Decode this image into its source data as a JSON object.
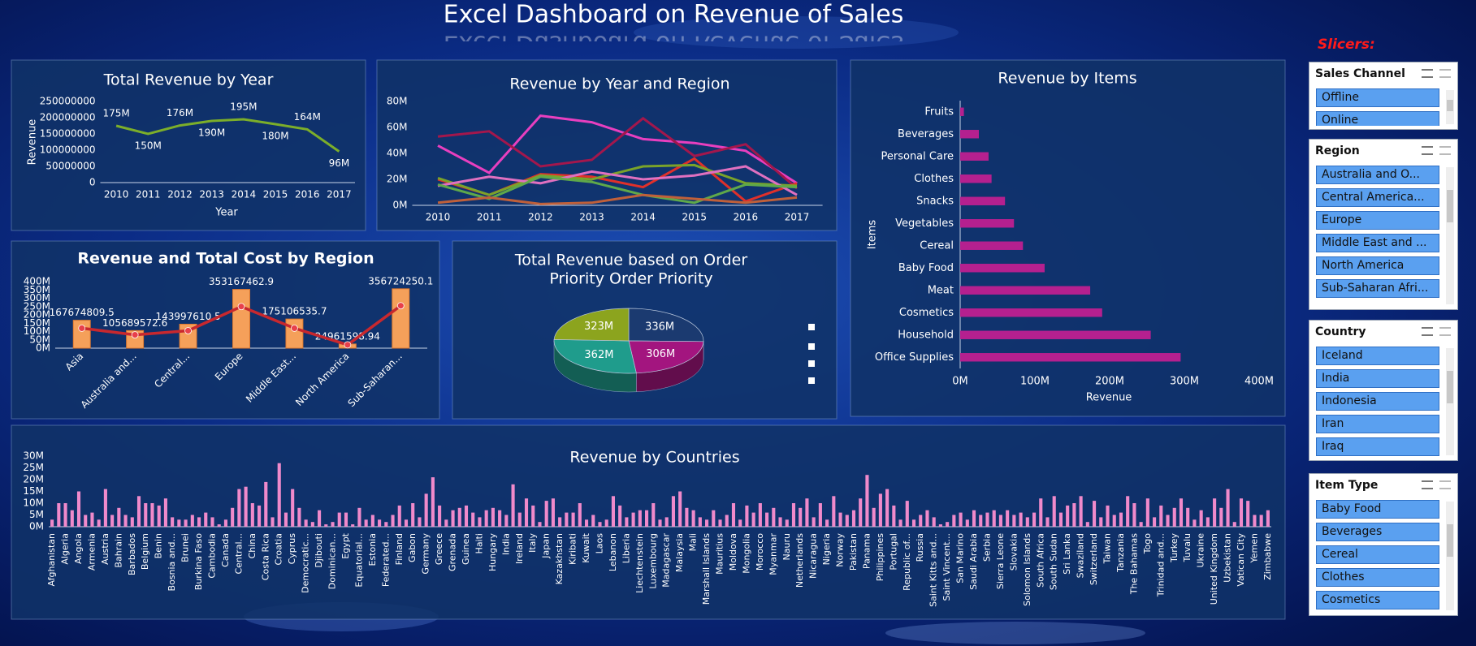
{
  "title": "Excel Dashboard on Revenue of Sales",
  "chart_data": [
    {
      "type": "line",
      "title": "Total Revenue by Year",
      "categories": [
        "2010",
        "2011",
        "2012",
        "2013",
        "2014",
        "2015",
        "2016",
        "2017"
      ],
      "values": [
        175000000,
        150000000,
        176000000,
        190000000,
        195000000,
        180000000,
        164000000,
        96000000
      ],
      "value_labels": [
        "175M",
        "150M",
        "176M",
        "190M",
        "195M",
        "180M",
        "164M",
        "96M"
      ],
      "color": "#7cae2a",
      "ylim": [
        0,
        250000000
      ],
      "yticks": [
        0,
        50000000,
        100000000,
        150000000,
        200000000,
        250000000
      ],
      "xlabel": "Year",
      "ylabel": "Revenue"
    },
    {
      "type": "line",
      "title": "Revenue by Year and Region",
      "categories": [
        "2010",
        "2011",
        "2012",
        "2013",
        "2014",
        "2015",
        "2016",
        "2017"
      ],
      "series": [
        {
          "color": "#e83fbf",
          "values": [
            46,
            25,
            69,
            64,
            51,
            48,
            42,
            17
          ]
        },
        {
          "color": "#a3174c",
          "values": [
            53,
            57,
            30,
            35,
            67,
            38,
            47,
            13
          ]
        },
        {
          "color": "#e0302a",
          "values": [
            20,
            8,
            24,
            22,
            14,
            36,
            3,
            17
          ]
        },
        {
          "color": "#7aa32a",
          "values": [
            21,
            8,
            23,
            20,
            30,
            31,
            17,
            15
          ]
        },
        {
          "color": "#e070c0",
          "values": [
            15,
            22,
            17,
            26,
            20,
            23,
            30,
            8
          ]
        },
        {
          "color": "#5fa84a",
          "values": [
            16,
            5,
            22,
            18,
            8,
            2,
            16,
            14
          ]
        },
        {
          "color": "#c0603a",
          "values": [
            2,
            6,
            1,
            2,
            8,
            5,
            2,
            6
          ]
        }
      ],
      "ylim": [
        0,
        80
      ],
      "yticks": [
        {
          "value": 0,
          "label": "0M"
        },
        {
          "value": 20,
          "label": "20M"
        },
        {
          "value": 40,
          "label": "40M"
        },
        {
          "value": 60,
          "label": "60M"
        },
        {
          "value": 80,
          "label": "80M"
        }
      ]
    },
    {
      "type": "bar",
      "orientation": "horizontal",
      "title": "Revenue by Items",
      "categories": [
        "Fruits",
        "Beverages",
        "Personal Care",
        "Clothes",
        "Snacks",
        "Vegetables",
        "Cereal",
        "Baby Food",
        "Meat",
        "Cosmetics",
        "Household",
        "Office Supplies"
      ],
      "values": [
        5,
        25,
        38,
        42,
        60,
        72,
        84,
        113,
        174,
        190,
        255,
        295
      ],
      "color": "#b5208f",
      "xlim": [
        0,
        400
      ],
      "xticks": [
        {
          "value": 0,
          "label": "0M"
        },
        {
          "value": 100,
          "label": "100M"
        },
        {
          "value": 200,
          "label": "200M"
        },
        {
          "value": 300,
          "label": "300M"
        },
        {
          "value": 400,
          "label": "400M"
        }
      ],
      "xlabel": "Revenue",
      "ylabel": "Items"
    },
    {
      "type": "combo",
      "title": "Revenue and Total Cost by Region",
      "categories": [
        "Asia",
        "Australia and...",
        "Central...",
        "Europe",
        "Middle East...",
        "North America",
        "Sub-Saharan..."
      ],
      "series": [
        {
          "type": "bar",
          "color": "#f5a05a",
          "values": [
            167674809.5,
            105689572.6,
            143997610.5,
            353167462.9,
            175106535.7,
            24961598.94,
            356724250.1
          ]
        },
        {
          "type": "line",
          "color": "#c8282e",
          "values": [
            120000000,
            80000000,
            105000000,
            250000000,
            120000000,
            20000000,
            255000000
          ]
        }
      ],
      "ylim": [
        0,
        400000000
      ],
      "yticks": [
        {
          "value": 0,
          "label": "0M"
        },
        {
          "value": 50000000,
          "label": "50M"
        },
        {
          "value": 100000000,
          "label": "100M"
        },
        {
          "value": 150000000,
          "label": "150M"
        },
        {
          "value": 200000000,
          "label": "200M"
        },
        {
          "value": 250000000,
          "label": "250M"
        },
        {
          "value": 300000000,
          "label": "300M"
        },
        {
          "value": 350000000,
          "label": "350M"
        },
        {
          "value": 400000000,
          "label": "400M"
        }
      ]
    },
    {
      "type": "pie",
      "title": [
        "Total Revenue based on Order",
        "Priority Order Priority"
      ],
      "values": [
        336,
        306,
        362,
        323
      ],
      "value_labels": [
        "336M",
        "306M",
        "362M",
        "323M"
      ],
      "colors": [
        "#1b3a70",
        "#a3157f",
        "#1f9c8c",
        "#8ca41e"
      ]
    },
    {
      "type": "bar",
      "title": "Revenue by Countries",
      "categories": [
        "Afghanistan",
        null,
        "Algeria",
        null,
        "Angola",
        null,
        "Armenia",
        null,
        "Austria",
        null,
        "Bahrain",
        null,
        "Barbados",
        null,
        "Belgium",
        null,
        "Benin",
        null,
        "Bosnia and...",
        null,
        "Brunei",
        null,
        "Burkina Faso",
        null,
        "Cambodia",
        null,
        "Canada",
        null,
        "Central...",
        null,
        "China",
        null,
        "Costa Rica",
        null,
        "Croatia",
        null,
        "Cyprus",
        null,
        "Democratic...",
        null,
        "Djibouti",
        null,
        "Dominican...",
        null,
        "Egypt",
        null,
        "Equatorial...",
        null,
        "Estonia",
        null,
        "Federated...",
        null,
        "Finland",
        null,
        "Gabon",
        null,
        "Germany",
        null,
        "Greece",
        null,
        "Grenada",
        null,
        "Guinea",
        null,
        "Haiti",
        null,
        "Hungary",
        null,
        "India",
        null,
        "Ireland",
        null,
        "Italy",
        null,
        "Japan",
        null,
        "Kazakhstan",
        null,
        "Kiribati",
        null,
        "Kuwait",
        null,
        "Laos",
        null,
        "Lebanon",
        null,
        "Liberia",
        null,
        "Liechtenstein",
        null,
        "Luxembourg",
        null,
        "Madagascar",
        null,
        "Malaysia",
        null,
        "Mali",
        null,
        "Marshall Islands",
        null,
        "Mauritius",
        null,
        "Moldova",
        null,
        "Mongolia",
        null,
        "Morocco",
        null,
        "Myanmar",
        null,
        "Nauru",
        null,
        "Netherlands",
        null,
        "Nicaragua",
        null,
        "Nigeria",
        null,
        "Norway",
        null,
        "Pakistan",
        null,
        "Panama",
        null,
        "Philippines",
        null,
        "Portugal",
        null,
        "Republic of...",
        null,
        "Russia",
        null,
        "Saint Kitts and...",
        null,
        "Saint Vincent...",
        null,
        "San Marino",
        null,
        "Saudi Arabia",
        null,
        "Serbia",
        null,
        "Sierra Leone",
        null,
        "Slovakia",
        null,
        "Solomon Islands",
        null,
        "South Africa",
        null,
        "South Sudan",
        null,
        "Sri Lanka",
        null,
        "Swaziland",
        null,
        "Switzerland",
        null,
        "Taiwan",
        null,
        "Tanzania",
        null,
        "The Bahamas",
        null,
        "Togo",
        null,
        "Trinidad and...",
        null,
        "Turkey",
        null,
        "Tuvalu",
        null,
        "Ukraine",
        null,
        "United Kingdom",
        null,
        "Uzbekistan",
        null,
        "Vatican City",
        null,
        "Yemen",
        null,
        "Zimbabwe"
      ],
      "values": [
        3,
        10,
        10,
        7,
        15,
        5,
        6,
        3,
        16,
        5,
        8,
        5,
        4,
        13,
        10,
        10,
        9,
        12,
        4,
        3,
        3,
        5,
        4,
        6,
        4,
        1,
        3,
        8,
        16,
        17,
        10,
        9,
        19,
        4,
        27,
        6,
        16,
        8,
        3,
        2,
        7,
        1,
        2,
        6,
        6,
        1,
        8,
        3,
        5,
        3,
        2,
        5,
        9,
        3,
        10,
        4,
        14,
        21,
        9,
        3,
        7,
        8,
        9,
        6,
        4,
        7,
        8,
        7,
        5,
        18,
        6,
        12,
        9,
        2,
        11,
        12,
        4,
        6,
        6,
        10,
        3,
        5,
        2,
        3,
        13,
        9,
        4,
        6,
        7,
        7,
        10,
        3,
        4,
        13,
        15,
        8,
        7,
        4,
        3,
        7,
        3,
        5,
        10,
        3,
        9,
        6,
        10,
        6,
        8,
        4,
        3,
        10,
        8,
        12,
        4,
        10,
        3,
        13,
        6,
        5,
        7,
        12,
        22,
        8,
        14,
        16,
        9,
        3,
        11,
        3,
        5,
        7,
        4,
        1,
        2,
        5,
        6,
        3,
        7,
        5,
        6,
        7,
        5,
        7,
        5,
        6,
        4,
        6,
        12,
        4,
        13,
        6,
        9,
        10,
        13,
        2,
        11,
        4,
        9,
        5,
        6,
        13,
        10,
        2,
        12,
        4,
        9,
        5,
        8,
        12,
        8,
        3,
        7,
        4,
        12,
        8,
        16,
        2,
        12,
        11,
        5,
        5,
        7
      ],
      "color": "#f08acb",
      "ylim": [
        0,
        30
      ],
      "yticks": [
        {
          "value": 0,
          "label": "0M"
        },
        {
          "value": 5,
          "label": "5M"
        },
        {
          "value": 10,
          "label": "10M"
        },
        {
          "value": 15,
          "label": "15M"
        },
        {
          "value": 20,
          "label": "20M"
        },
        {
          "value": 25,
          "label": "25M"
        },
        {
          "value": 30,
          "label": "30M"
        }
      ]
    }
  ],
  "slicers": {
    "label": "Slicers:",
    "panels": [
      {
        "title": "Sales Channel",
        "items": [
          "Offline",
          "Online"
        ]
      },
      {
        "title": "Region",
        "items": [
          "Australia and O...",
          "Central America...",
          "Europe",
          "Middle East and ...",
          "North America",
          "Sub-Saharan Afri..."
        ]
      },
      {
        "title": "Country",
        "items": [
          "Iceland",
          "India",
          "Indonesia",
          "Iran",
          "Iraq"
        ]
      },
      {
        "title": "Item Type",
        "items": [
          "Baby Food",
          "Beverages",
          "Cereal",
          "Clothes",
          "Cosmetics"
        ]
      }
    ]
  }
}
